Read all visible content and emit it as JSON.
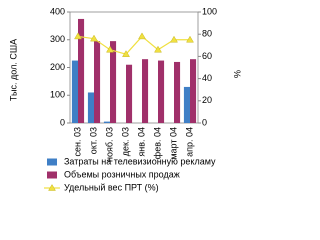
{
  "chart_data": {
    "type": "bar",
    "y_label": "Тыс. дол. США",
    "y2_label": "%",
    "categories": [
      "сен. 03",
      "окт. 03",
      "нояб. 03",
      "дек. 03",
      "янв. 04",
      "фев. 04",
      "март 04",
      "апр. 04"
    ],
    "series": [
      {
        "name": "Затраты на телевизионную рекламу",
        "color": "#3f7fc6",
        "values": [
          225,
          110,
          5,
          0,
          0,
          0,
          0,
          130
        ]
      },
      {
        "name": "Объемы розничных продаж",
        "color": "#a0306a",
        "values": [
          375,
          295,
          295,
          210,
          230,
          225,
          220,
          230
        ]
      },
      {
        "name": "Удельный вес ПРТ (%)",
        "color": "#f0e040",
        "type": "line",
        "axis": "y2",
        "values": [
          78,
          76,
          66,
          62,
          78,
          66,
          75,
          75
        ]
      }
    ],
    "ylim": [
      0,
      400
    ],
    "yticks": [
      0,
      100,
      200,
      300,
      400
    ],
    "y2lim": [
      0,
      100
    ],
    "y2ticks": [
      0,
      20,
      40,
      60,
      80,
      100
    ],
    "legend": "bottom"
  }
}
